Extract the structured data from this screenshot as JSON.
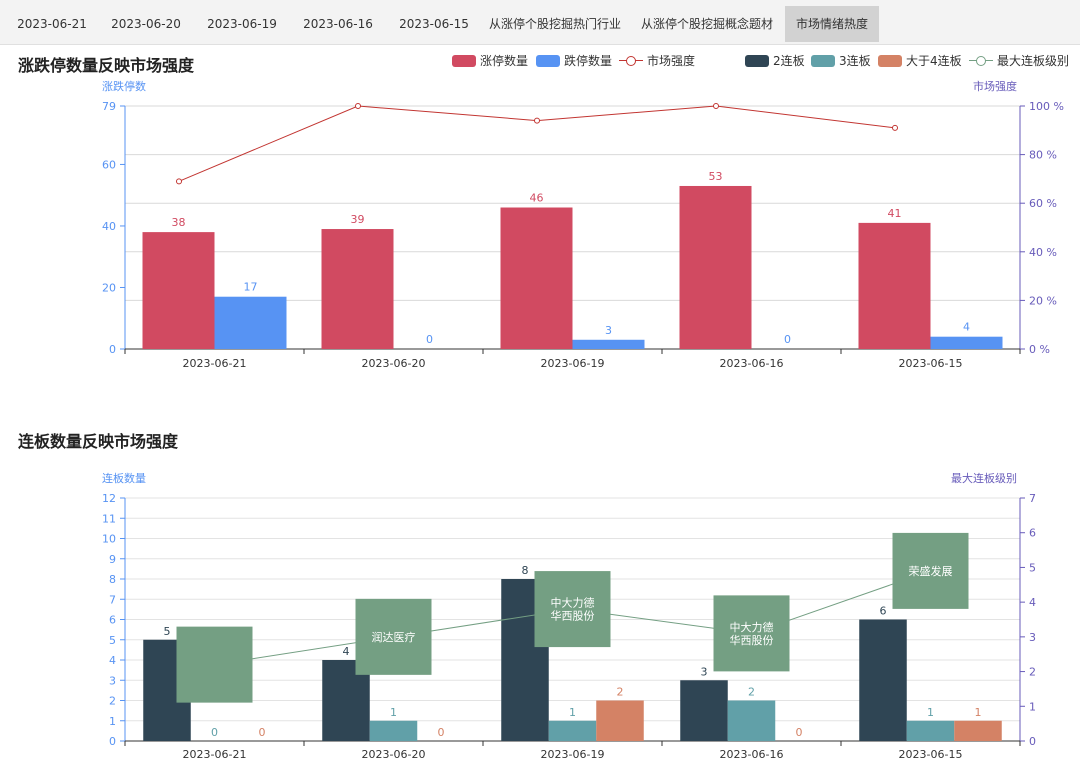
{
  "tabs": [
    {
      "label": "2023-06-21",
      "active": false
    },
    {
      "label": "2023-06-20",
      "active": false
    },
    {
      "label": "2023-06-19",
      "active": false
    },
    {
      "label": "2023-06-16",
      "active": false
    },
    {
      "label": "2023-06-15",
      "active": false
    },
    {
      "label": "从涨停个股挖掘热门行业",
      "active": false
    },
    {
      "label": "从涨停个股挖掘概念题材",
      "active": false
    },
    {
      "label": "市场情绪热度",
      "active": true
    }
  ],
  "colors": {
    "limit_up": "#d14a61",
    "limit_down": "#5793f3",
    "strength": "#c23531",
    "board2": "#2f4554",
    "board3": "#61a0a8",
    "board4plus": "#d48265",
    "max_level_line": "#749f83",
    "axis_left": "#5793f3",
    "axis_right": "#675bba"
  },
  "chart_data": [
    {
      "type": "bar",
      "title": "涨跌停数量反映市场强度",
      "categories": [
        "2023-06-21",
        "2023-06-20",
        "2023-06-19",
        "2023-06-16",
        "2023-06-15"
      ],
      "ylabel": "涨跌停数",
      "y2label": "市场强度",
      "ylim": [
        0,
        79
      ],
      "yticks": [
        0,
        20,
        40,
        60,
        79
      ],
      "y2lim": [
        0,
        100
      ],
      "y2ticks": [
        "0 %",
        "20 %",
        "40 %",
        "60 %",
        "80 %",
        "100 %"
      ],
      "grid": true,
      "legend_position": "top-right",
      "legend": [
        "涨停数量",
        "跌停数量",
        "市场强度"
      ],
      "series": [
        {
          "name": "涨停数量",
          "type": "bar",
          "values": [
            38,
            39,
            46,
            53,
            41
          ]
        },
        {
          "name": "跌停数量",
          "type": "bar",
          "values": [
            17,
            0,
            3,
            0,
            4
          ]
        },
        {
          "name": "市场强度",
          "type": "line",
          "axis": "right",
          "values": [
            69,
            100,
            94,
            100,
            91
          ]
        }
      ]
    },
    {
      "type": "bar",
      "title": "连板数量反映市场强度",
      "categories": [
        "2023-06-21",
        "2023-06-20",
        "2023-06-19",
        "2023-06-16",
        "2023-06-15"
      ],
      "ylabel": "连板数量",
      "y2label": "最大连板级别",
      "ylim": [
        0,
        12
      ],
      "y2lim": [
        0,
        7
      ],
      "grid": true,
      "legend_position": "top-right",
      "legend": [
        "2连板",
        "3连板",
        "大于4连板",
        "最大连板级别"
      ],
      "series": [
        {
          "name": "2连板",
          "type": "bar",
          "values": [
            5,
            4,
            8,
            3,
            6
          ]
        },
        {
          "name": "3连板",
          "type": "bar",
          "values": [
            0,
            1,
            1,
            2,
            1
          ]
        },
        {
          "name": "大于4连板",
          "type": "bar",
          "values": [
            0,
            0,
            2,
            0,
            1
          ]
        },
        {
          "name": "最大连板级别",
          "type": "line",
          "axis": "right",
          "values": [
            2.2,
            3,
            3.8,
            3.1,
            4.9
          ]
        }
      ],
      "annotations": [
        [],
        [
          "润达医疗"
        ],
        [
          "中大力德",
          "华西股份"
        ],
        [
          "中大力德",
          "华西股份"
        ],
        [
          "荣盛发展"
        ]
      ]
    }
  ]
}
